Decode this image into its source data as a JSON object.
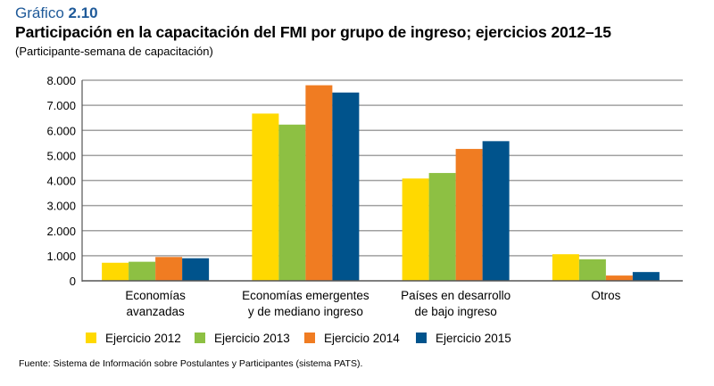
{
  "header": {
    "kicker_prefix": "Gráfico",
    "kicker_number": "2.10",
    "title": "Participación en la capacitación del FMI por grupo de ingreso; ejercicios 2012–15",
    "subtitle": "(Participante-semana de capacitación)"
  },
  "footer": {
    "source": "Fuente: Sistema de Información sobre Postulantes y Participantes (sistema PATS)."
  },
  "colors": {
    "kicker": "#1f5a99",
    "gridline": "#a0a0a0",
    "axis": "#555555"
  },
  "chart_data": {
    "type": "bar",
    "title": "Participación en la capacitación del FMI por grupo de ingreso; ejercicios 2012–15",
    "subtitle": "(Participante-semana de capacitación)",
    "xlabel": "",
    "ylabel": "",
    "ylim": [
      0,
      8000
    ],
    "yticks": [
      0,
      1000,
      2000,
      3000,
      4000,
      5000,
      6000,
      7000,
      8000
    ],
    "ytick_labels": [
      "0",
      "1.000",
      "2.000",
      "3.000",
      "4.000",
      "5.000",
      "6.000",
      "7.000",
      "8.000"
    ],
    "grid": true,
    "legend_position": "bottom",
    "categories": [
      [
        "Economías",
        "avanzadas"
      ],
      [
        "Economías emergentes",
        "y de mediano ingreso"
      ],
      [
        "Países en desarrollo",
        "de bajo ingreso"
      ],
      [
        "Otros"
      ]
    ],
    "series": [
      {
        "name": "Ejercicio 2012",
        "color": "#ffd900",
        "values": [
          720,
          6670,
          4080,
          1060
        ]
      },
      {
        "name": "Ejercicio 2013",
        "color": "#8dc043",
        "values": [
          760,
          6230,
          4300,
          860
        ]
      },
      {
        "name": "Ejercicio 2014",
        "color": "#f07c22",
        "values": [
          950,
          7800,
          5260,
          210
        ]
      },
      {
        "name": "Ejercicio 2015",
        "color": "#00538c",
        "values": [
          900,
          7510,
          5570,
          350
        ]
      }
    ]
  }
}
